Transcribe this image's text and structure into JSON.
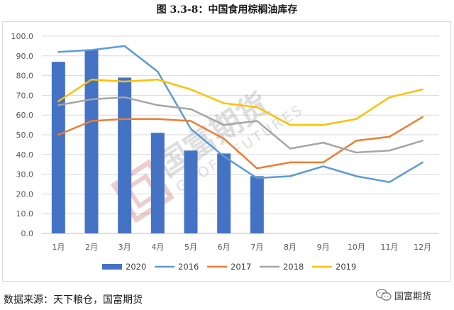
{
  "title": "图 3.3-8：中国食用棕榈油库存",
  "source": "数据来源：天下粮仓，国富期货",
  "brand": "国富期货",
  "watermark": {
    "cn": "国富期货",
    "en": "GUOFU FUTURES"
  },
  "chart_data": {
    "type": "bar+line",
    "categories": [
      "1月",
      "2月",
      "3月",
      "4月",
      "5月",
      "6月",
      "7月",
      "8月",
      "9月",
      "10月",
      "11月",
      "12月"
    ],
    "ylim": [
      0,
      100
    ],
    "ytick_step": 10,
    "ytick_labels": [
      "0.0",
      "10.0",
      "20.0",
      "30.0",
      "40.0",
      "50.0",
      "60.0",
      "70.0",
      "80.0",
      "90.0",
      "100.0"
    ],
    "xlabel": "",
    "ylabel": "",
    "grid": true,
    "legend_position": "bottom",
    "series": [
      {
        "name": "2020",
        "kind": "bar",
        "color": "#4472C4",
        "values": [
          87,
          93,
          79,
          51,
          42,
          40.5,
          29,
          null,
          null,
          null,
          null,
          null
        ]
      },
      {
        "name": "2016",
        "kind": "line",
        "color": "#5B9BD5",
        "values": [
          92,
          93,
          95,
          82,
          53,
          39,
          28,
          29,
          34,
          29,
          26,
          36
        ]
      },
      {
        "name": "2017",
        "kind": "line",
        "color": "#ED7D31",
        "values": [
          50,
          57,
          58,
          58,
          57,
          48,
          33,
          36,
          36,
          47,
          49,
          59
        ]
      },
      {
        "name": "2018",
        "kind": "line",
        "color": "#A5A5A5",
        "values": [
          65,
          68,
          69,
          65,
          63,
          55,
          57,
          43,
          46,
          41,
          42,
          47
        ]
      },
      {
        "name": "2019",
        "kind": "line",
        "color": "#FFC000",
        "values": [
          67,
          78,
          77,
          78,
          73,
          66,
          64,
          55,
          55,
          58,
          69,
          73
        ]
      }
    ]
  }
}
